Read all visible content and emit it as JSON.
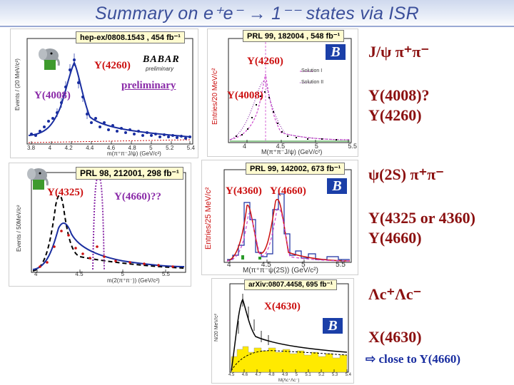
{
  "slide": {
    "title": "Summary on e⁺e⁻ → 1⁻⁻ states via ISR"
  },
  "panels": {
    "babar_jpsipipi": {
      "tag": "hep-ex/0808.1543 , 454 fb⁻¹",
      "logo": "BABAR",
      "logo_sub": "preliminary",
      "preliminary": "preliminary",
      "label_4260": "Y(4260)",
      "label_4008": "Y(4008)",
      "ylabel": "Events / (20 MeV/c²)",
      "xlabel": "m(π⁺π⁻J/ψ) (GeV/c²)",
      "xticks": [
        "3.8",
        "4",
        "4.2",
        "4.4",
        "4.6",
        "4.8",
        "5",
        "5.2",
        "5.4"
      ],
      "yticks": [
        "0",
        "10",
        "20",
        "30",
        "40",
        "50",
        "60",
        "70",
        "80"
      ]
    },
    "belle_jpsipipi": {
      "tag": "PRL 99, 182004 , 548 fb⁻¹",
      "label_4260": "Y(4260)",
      "label_4008": "Y(4008)",
      "legend": [
        "Solution I",
        "Solution II"
      ],
      "ylabel": "Entries/20 MeV/c²",
      "xlabel": "M(π⁺π⁻J/ψ) (GeV/c²)",
      "xticks": [
        "4",
        "4.5",
        "5",
        "5.5"
      ],
      "yticks": [
        "0",
        "20",
        "40",
        "60",
        "80"
      ]
    },
    "babar_psi2s": {
      "tag": "PRL 98, 212001, 298 fb⁻¹",
      "label_4325": "Y(4325)",
      "label_4660": "Y(4660)??",
      "ylabel": "Events / 50MeV/c²",
      "xlabel": "m(2(π⁺π⁻)) (GeV/c²)",
      "xticks": [
        "4",
        "4.5",
        "5",
        "5.5"
      ]
    },
    "belle_psi2s": {
      "tag": "PRL 99, 142002, 673 fb⁻¹",
      "label_4360": "Y(4360)",
      "label_4660": "Y(4660)",
      "ylabel": "Entries/25 MeV/c²",
      "xlabel": "M(π⁺π⁻ψ(2S)) (GeV/c²)",
      "xticks": [
        "4",
        "4.5",
        "5",
        "5.5"
      ],
      "yticks": [
        "0",
        "2",
        "4",
        "6",
        "8",
        "10",
        "12",
        "14",
        "16",
        "18"
      ]
    },
    "belle_lclc": {
      "tag": "arXiv:0807.4458, 695 fb⁻¹",
      "label_4630": "X(4630)",
      "ylabel": "N/20 MeV/c²",
      "xlabel": "M(Λc⁺Λc⁻)",
      "xticks": [
        "4.5",
        "4.6",
        "4.7",
        "4.8",
        "4.9",
        "5",
        "5.1",
        "5.2",
        "5.3",
        "5.4"
      ],
      "yticks": [
        "0",
        "10",
        "20",
        "30",
        "40"
      ]
    }
  },
  "summary": {
    "row1_channel": "J/ψ π⁺π⁻",
    "row1_states": [
      "Y(4008)?",
      "Y(4260)"
    ],
    "row2_channel": "ψ(2S) π⁺π⁻",
    "row2_states": [
      "Y(4325 or 4360)",
      "Y(4660)"
    ],
    "row3_channel": "Λc⁺Λc⁻",
    "row3_states": [
      "X(4630)"
    ],
    "row3_note_arrow": "⇨",
    "row3_note": "close to Y(4660)"
  },
  "logo_belle": "B",
  "colors": {
    "title": "#3b4f9a",
    "tag_bg": "#fffbd0",
    "label_red": "#cc1111",
    "label_purple": "#8a2aa8",
    "fit_blue": "#1a2ea0",
    "summary_dark_red": "#8b1010",
    "belle_logo": "#1b3fa8"
  }
}
